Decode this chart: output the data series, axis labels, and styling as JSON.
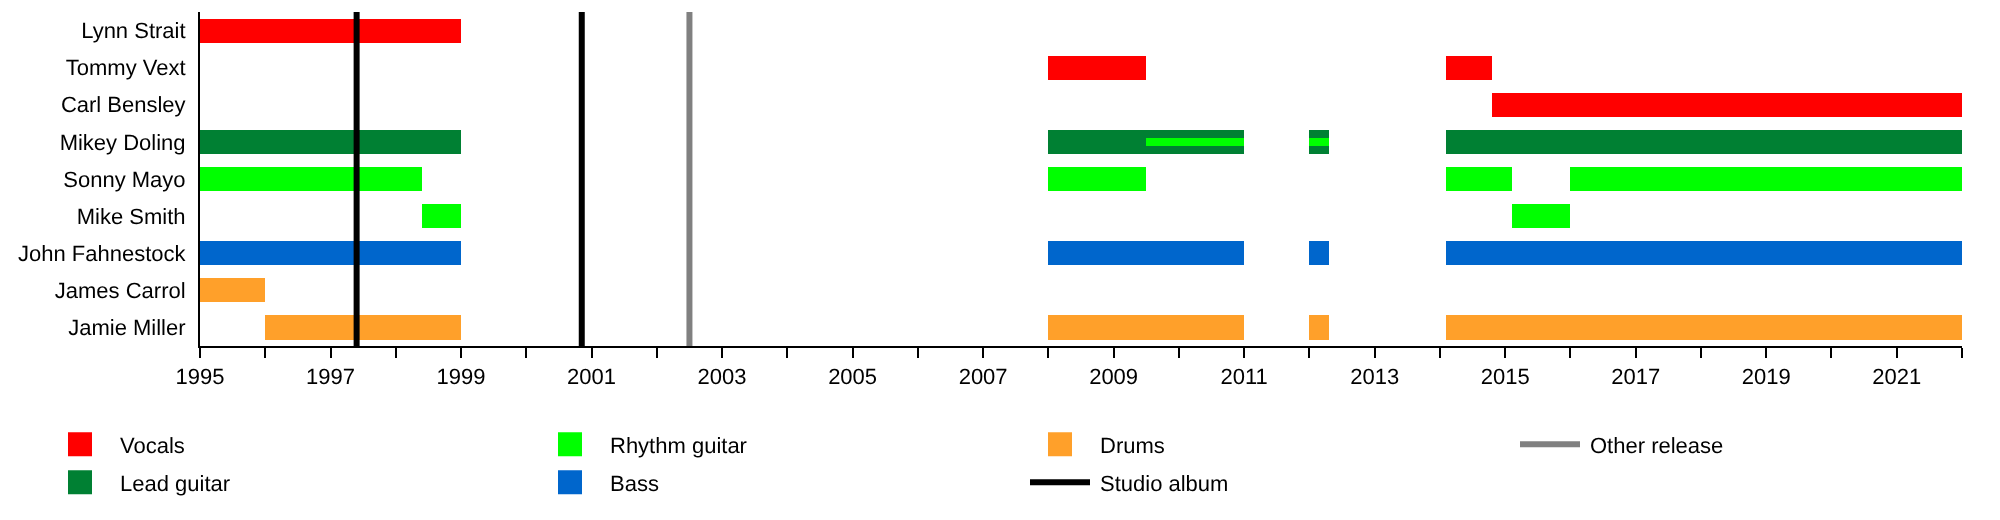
{
  "chart_data": {
    "type": "bar",
    "orientation": "horizontal",
    "categories": [
      "Lynn Strait",
      "Tommy Vext",
      "Carl Bensley",
      "Mikey Doling",
      "Sonny Mayo",
      "Mike Smith",
      "John Fahnestock",
      "James Carrol",
      "Jamie Miller"
    ],
    "series": [
      {
        "name": "Vocals",
        "color": "#ff0000",
        "base": [
          1995,
          2008,
          null,
          null,
          null,
          null,
          null,
          null,
          null
        ],
        "values": [
          4,
          1.5,
          null,
          null,
          null,
          null,
          null,
          null,
          null
        ]
      },
      {
        "color": "#ff0000",
        "base": [
          null,
          2014.1,
          2014.8,
          null,
          null,
          null,
          null,
          null,
          null
        ],
        "values": [
          null,
          0.7,
          7.2,
          null,
          null,
          null,
          null,
          null,
          null
        ]
      },
      {
        "name": "Lead guitar",
        "color": "#008033",
        "base": [
          null,
          null,
          null,
          1995,
          null,
          null,
          null,
          null,
          null
        ],
        "values": [
          null,
          null,
          null,
          4,
          null,
          null,
          null,
          null,
          null
        ]
      },
      {
        "color": "#008033",
        "base": [
          null,
          null,
          null,
          2008,
          null,
          null,
          null,
          null,
          null
        ],
        "values": [
          null,
          null,
          null,
          3,
          null,
          null,
          null,
          null,
          null
        ]
      },
      {
        "color": "#008033",
        "base": [
          null,
          null,
          null,
          2012,
          null,
          null,
          null,
          null,
          null
        ],
        "values": [
          null,
          null,
          null,
          0.3,
          null,
          null,
          null,
          null,
          null
        ]
      },
      {
        "color": "#008033",
        "base": [
          null,
          null,
          null,
          2014.1,
          null,
          null,
          null,
          null,
          null
        ],
        "values": [
          null,
          null,
          null,
          7.9,
          null,
          null,
          null,
          null,
          null
        ]
      },
      {
        "name": "Rhythm guitar",
        "color": "#00ff00",
        "base": [
          null,
          null,
          null,
          null,
          1995,
          1998.4,
          null,
          null,
          null
        ],
        "values": [
          null,
          null,
          null,
          null,
          3.4,
          0.6,
          null,
          null,
          null
        ]
      },
      {
        "color": "#00ff00",
        "base": [
          null,
          null,
          null,
          2009.5,
          2008,
          2015.1,
          null,
          null,
          null
        ],
        "values": [
          null,
          null,
          null,
          1.5,
          1.5,
          0.9,
          null,
          null,
          null
        ]
      },
      {
        "color": "#00ff00",
        "base": [
          null,
          null,
          null,
          2012,
          2014.1,
          null,
          null,
          null,
          null
        ],
        "values": [
          null,
          null,
          null,
          0.3,
          1,
          null,
          null,
          null,
          null
        ]
      },
      {
        "color": "#00ff00",
        "base": [
          null,
          null,
          null,
          null,
          2016,
          null,
          null,
          null,
          null
        ],
        "values": [
          null,
          null,
          null,
          null,
          6,
          null,
          null,
          null,
          null
        ]
      },
      {
        "name": "Bass",
        "color": "#0066cc",
        "base": [
          null,
          null,
          null,
          null,
          null,
          null,
          1995,
          null,
          null
        ],
        "values": [
          null,
          null,
          null,
          null,
          null,
          null,
          4,
          null,
          null
        ]
      },
      {
        "color": "#0066cc",
        "base": [
          null,
          null,
          null,
          null,
          null,
          null,
          2008,
          null,
          null
        ],
        "values": [
          null,
          null,
          null,
          null,
          null,
          null,
          3,
          null,
          null
        ]
      },
      {
        "color": "#0066cc",
        "base": [
          null,
          null,
          null,
          null,
          null,
          null,
          2012,
          null,
          null
        ],
        "values": [
          null,
          null,
          null,
          null,
          null,
          null,
          0.3,
          null,
          null
        ]
      },
      {
        "color": "#0066cc",
        "base": [
          null,
          null,
          null,
          null,
          null,
          null,
          2014.1,
          null,
          null
        ],
        "values": [
          null,
          null,
          null,
          null,
          null,
          null,
          7.9,
          null,
          null
        ]
      },
      {
        "name": "Drums",
        "color": "#ffa02a",
        "base": [
          null,
          null,
          null,
          null,
          null,
          null,
          null,
          1995,
          1996
        ],
        "values": [
          null,
          null,
          null,
          null,
          null,
          null,
          null,
          1,
          3
        ]
      },
      {
        "color": "#ffa02a",
        "base": [
          null,
          null,
          null,
          null,
          null,
          null,
          null,
          null,
          2008
        ],
        "values": [
          null,
          null,
          null,
          null,
          null,
          null,
          null,
          null,
          3
        ]
      },
      {
        "color": "#ffa02a",
        "base": [
          null,
          null,
          null,
          null,
          null,
          null,
          null,
          null,
          2012
        ],
        "values": [
          null,
          null,
          null,
          null,
          null,
          null,
          null,
          null,
          0.3
        ]
      },
      {
        "color": "#ffa02a",
        "base": [
          null,
          null,
          null,
          null,
          null,
          null,
          null,
          null,
          2014.1
        ],
        "values": [
          null,
          null,
          null,
          null,
          null,
          null,
          null,
          null,
          7.9
        ]
      }
    ],
    "ref_lines": [
      {
        "axis": "x",
        "value": 1997.4,
        "label": "Studio album",
        "color": "#000000"
      },
      {
        "axis": "x",
        "value": 2000.85,
        "color": "#000000"
      },
      {
        "axis": "x",
        "value": 2002.5,
        "label": "Other release",
        "color": "#808080"
      }
    ],
    "xlim": [
      1995,
      2022
    ],
    "xticks": [
      1995,
      {
        "value": 1996,
        "label": null
      },
      1997,
      {
        "value": 1998,
        "label": null
      },
      1999,
      {
        "value": 2000,
        "label": null
      },
      2001,
      {
        "value": 2002,
        "label": null
      },
      2003,
      {
        "value": 2004,
        "label": null
      },
      2005,
      {
        "value": 2006,
        "label": null
      },
      2007,
      {
        "value": 2008,
        "label": null
      },
      2009,
      {
        "value": 2010,
        "label": null
      },
      2011,
      {
        "value": 2012,
        "label": null
      },
      2013,
      {
        "value": 2014,
        "label": null
      },
      2015,
      {
        "value": 2016,
        "label": null
      },
      2017,
      {
        "value": 2018,
        "label": null
      },
      2019,
      {
        "value": 2020,
        "label": null
      },
      2021,
      {
        "value": 2022,
        "label": null
      }
    ],
    "grid": false,
    "legend": "bottom"
  }
}
